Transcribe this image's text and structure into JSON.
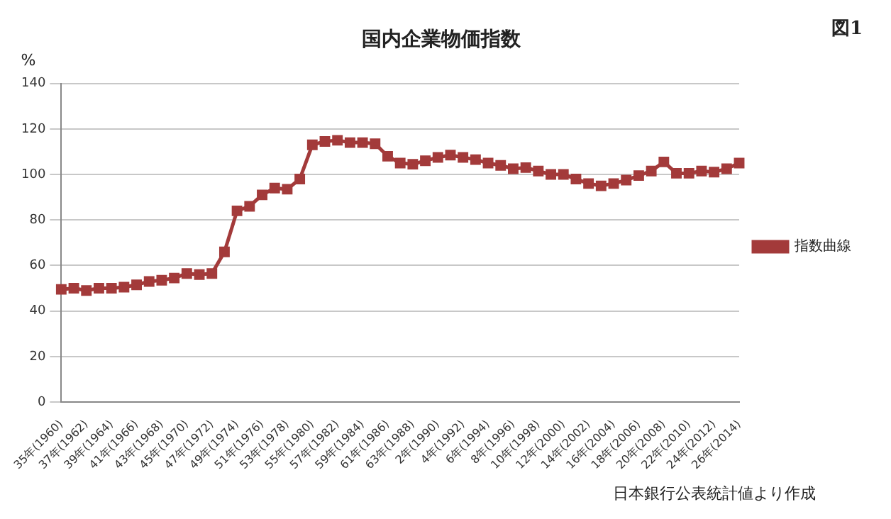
{
  "chart_data": {
    "type": "line",
    "title": "国内企業物価指数",
    "ylabel": "%",
    "annotations": [
      "図1",
      "日本銀行公表統計値より作成"
    ],
    "categories": [
      "35年(1960)",
      null,
      "37年(1962)",
      null,
      "39年(1964)",
      null,
      "41年(1966)",
      null,
      "43年(1968)",
      null,
      "45年(1970)",
      null,
      "47年(1972)",
      null,
      "49年(1974)",
      null,
      "51年(1976)",
      null,
      "53年(1978)",
      null,
      "55年(1980)",
      null,
      "57年(1982)",
      null,
      "59年(1984)",
      null,
      "61年(1986)",
      null,
      "63年(1988)",
      null,
      "2年(1990)",
      null,
      "4年(1992)",
      null,
      "6年(1994)",
      null,
      "8年(1996)",
      null,
      "10年(1998)",
      null,
      "12年(2000)",
      null,
      "14年(2002)",
      null,
      "16年(2004)",
      null,
      "18年(2006)",
      null,
      "20年(2008)",
      null,
      "22年(2010)",
      null,
      "24年(2012)",
      null,
      "26年(2014)"
    ],
    "series": [
      {
        "name": "指数曲線",
        "color": "#a33a3a",
        "values": [
          49.5,
          50,
          49,
          50,
          50,
          50.5,
          51.5,
          53,
          53.5,
          54.5,
          56.5,
          56,
          56.5,
          66,
          84,
          86,
          91,
          94,
          93.5,
          98,
          113,
          114.5,
          115,
          114,
          114,
          113.5,
          108,
          105,
          104.5,
          106,
          107.5,
          108.5,
          107.5,
          106.5,
          105,
          104,
          102.5,
          103,
          101.5,
          100,
          100,
          98,
          96,
          95,
          96,
          97.5,
          99.5,
          101.5,
          105.5,
          100.5,
          100.5,
          101.5,
          101,
          102.5,
          105
        ]
      }
    ],
    "ylim": [
      0,
      140
    ],
    "yticks": [
      0,
      20,
      40,
      60,
      80,
      100,
      120,
      140
    ],
    "grid": "y",
    "legend": "right",
    "marker": "square",
    "line_style": "solid"
  }
}
